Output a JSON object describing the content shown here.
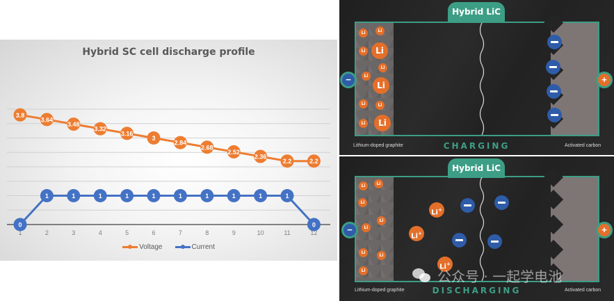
{
  "chart_data": {
    "type": "line",
    "title": "Hybrid SC cell discharge profile",
    "xlabel": "",
    "ylabel": "",
    "categories": [
      1,
      2,
      3,
      4,
      5,
      6,
      7,
      8,
      9,
      10,
      11,
      12
    ],
    "series": [
      {
        "name": "Voltage",
        "color": "#ed7d31",
        "values": [
          3.8,
          3.64,
          3.48,
          3.32,
          3.16,
          3,
          2.84,
          2.68,
          2.52,
          2.36,
          2.2,
          2.2
        ]
      },
      {
        "name": "Current",
        "color": "#4472c4",
        "values": [
          0,
          1,
          1,
          1,
          1,
          1,
          1,
          1,
          1,
          1,
          1,
          0
        ]
      }
    ],
    "ylim": [
      0,
      4
    ],
    "grid": true,
    "legend_position": "bottom",
    "data_labels": true
  },
  "diagrams": [
    {
      "title": "Hybrid LiC",
      "mode": "CHARGING",
      "left_caption": "Lithium-doped graphite",
      "right_caption": "Activated carbon",
      "negative_terminal": "−",
      "positive_terminal": "+",
      "small_li_label": "Li",
      "big_li_label": "Li"
    },
    {
      "title": "Hybrid LiC",
      "mode": "DISCHARGING",
      "left_caption": "Lithium-doped graphite",
      "right_caption": "Activated carbon",
      "negative_terminal": "−",
      "positive_terminal": "+",
      "small_li_label": "Li",
      "ion_label": "Li",
      "ion_charge": "+"
    }
  ],
  "watermark": {
    "text": "公众号 · 一起学电池"
  },
  "colors": {
    "teal": "#3d9e86",
    "orange": "#e46f2a",
    "blue": "#2f5ca8"
  }
}
